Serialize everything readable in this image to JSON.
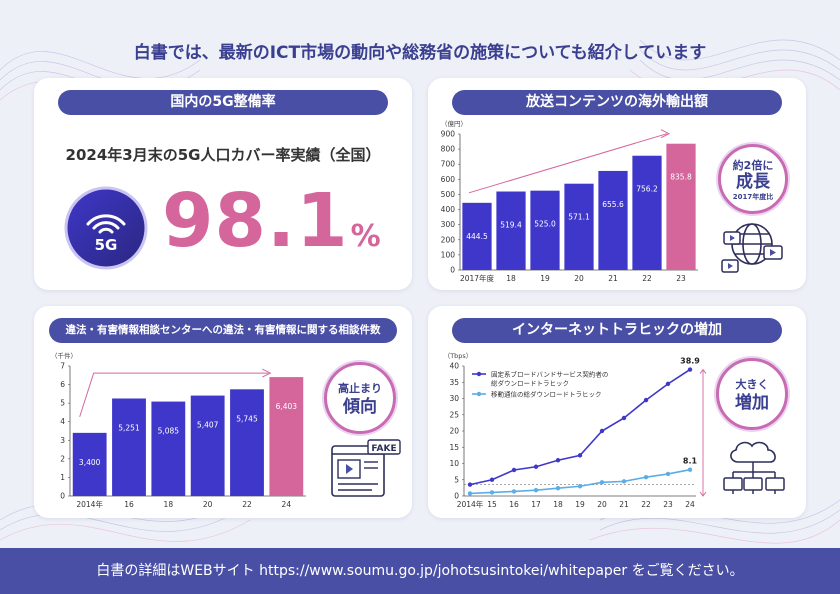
{
  "headline": "白書では、最新のICT市場の動向や総務省の施策についても紹介しています",
  "panel_5g": {
    "title": "国内の5G整備率",
    "subtitle": "2024年3月末の5G人口カバー率実績（全国）",
    "icon_label": "5G",
    "value": "98.1",
    "unit": "%"
  },
  "panel_broadcast": {
    "title": "放送コンテンツの海外輸出額",
    "badge_line1": "約2倍に",
    "badge_line2": "成長",
    "badge_line3": "2017年度比"
  },
  "panel_consult": {
    "title": "違法・有害情報相談センターへの違法・有害情報に関する相談件数",
    "badge_line1": "高止まり",
    "badge_line2": "傾向",
    "fake_label": "FAKE"
  },
  "panel_traffic": {
    "title": "インターネットトラヒックの増加",
    "badge_line1": "大きく",
    "badge_line2": "増加"
  },
  "footer": "白書の詳細はWEBサイト https://www.soumu.go.jp/johotsusintokei/whitepaper をご覧ください。",
  "chart_data": [
    {
      "type": "bar",
      "unit_label": "（億円）",
      "categories": [
        "2017年度",
        "18",
        "19",
        "20",
        "21",
        "22",
        "23"
      ],
      "values": [
        444.5,
        519.4,
        525.0,
        571.1,
        655.6,
        756.2,
        835.8
      ],
      "value_labels": [
        "444.5",
        "519.4",
        "525.0",
        "571.1",
        "655.6",
        "756.2",
        "835.8"
      ],
      "ylim": [
        0,
        900
      ],
      "yticks": [
        0,
        100,
        200,
        300,
        400,
        500,
        600,
        700,
        800,
        900
      ],
      "highlight_last": true,
      "colors": {
        "bar": "#3f37c9",
        "highlight": "#d4669c"
      }
    },
    {
      "type": "bar",
      "unit_label": "（千件）",
      "categories": [
        "2014年",
        "16",
        "18",
        "20",
        "22",
        "24"
      ],
      "values": [
        3.4,
        5.251,
        5.085,
        5.407,
        5.745,
        6.403
      ],
      "value_labels": [
        "3,400",
        "5,251",
        "5,085",
        "5,407",
        "5,745",
        "6,403"
      ],
      "ylim": [
        0,
        7
      ],
      "yticks": [
        0,
        1,
        2,
        3,
        4,
        5,
        6,
        7
      ],
      "highlight_last": true,
      "colors": {
        "bar": "#3f37c9",
        "highlight": "#d4669c"
      }
    },
    {
      "type": "line",
      "unit_label": "（Tbps）",
      "x": [
        "2014年",
        "15",
        "16",
        "17",
        "18",
        "19",
        "20",
        "21",
        "22",
        "23",
        "24"
      ],
      "ylim": [
        0,
        40
      ],
      "yticks": [
        0,
        5,
        10,
        15,
        20,
        25,
        30,
        35,
        40
      ],
      "series": [
        {
          "name": "固定系ブロードバンドサービス契約者の総ダウンロードトラヒック",
          "values": [
            3.5,
            5.0,
            8.0,
            9.0,
            11.0,
            12.5,
            20.0,
            24.0,
            29.5,
            34.5,
            38.9
          ],
          "end_label": "38.9",
          "color": "#3f37c9"
        },
        {
          "name": "移動通信の総ダウンロードトラヒック",
          "values": [
            0.8,
            1.1,
            1.4,
            1.8,
            2.4,
            3.0,
            4.2,
            4.5,
            5.8,
            6.8,
            8.1
          ],
          "end_label": "8.1",
          "color": "#5aaee8"
        }
      ]
    }
  ]
}
